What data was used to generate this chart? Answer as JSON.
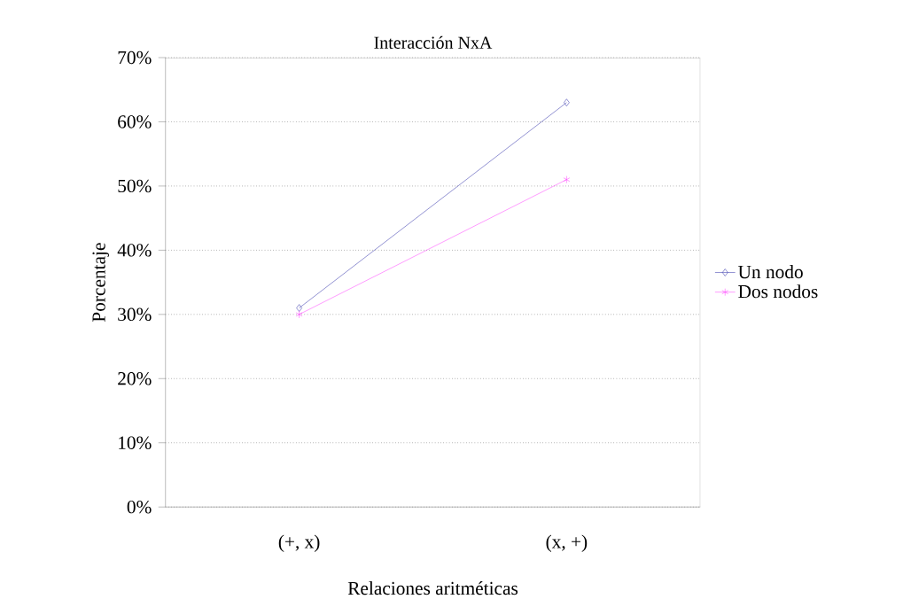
{
  "chart_data": {
    "type": "line",
    "title": "Interacción NxA",
    "xlabel": "Relaciones aritméticas",
    "ylabel": "Porcentaje",
    "categories": [
      "(+, x)",
      "(x, +)"
    ],
    "series": [
      {
        "name": "Un nodo",
        "color": "#3333aa",
        "marker": "diamond",
        "values": [
          31,
          63
        ]
      },
      {
        "name": "Dos nodos",
        "color": "#ff44ff",
        "marker": "cross",
        "values": [
          30,
          51
        ]
      }
    ],
    "ylim": [
      0,
      70
    ],
    "yticks": [
      {
        "value": 0,
        "label": "0%"
      },
      {
        "value": 10,
        "label": "10%"
      },
      {
        "value": 20,
        "label": "20%"
      },
      {
        "value": 30,
        "label": "30%"
      },
      {
        "value": 40,
        "label": "40%"
      },
      {
        "value": 50,
        "label": "50%"
      },
      {
        "value": 60,
        "label": "60%"
      },
      {
        "value": 70,
        "label": "70%"
      }
    ],
    "grid": "y",
    "legend": "right",
    "line_style": "solid"
  }
}
